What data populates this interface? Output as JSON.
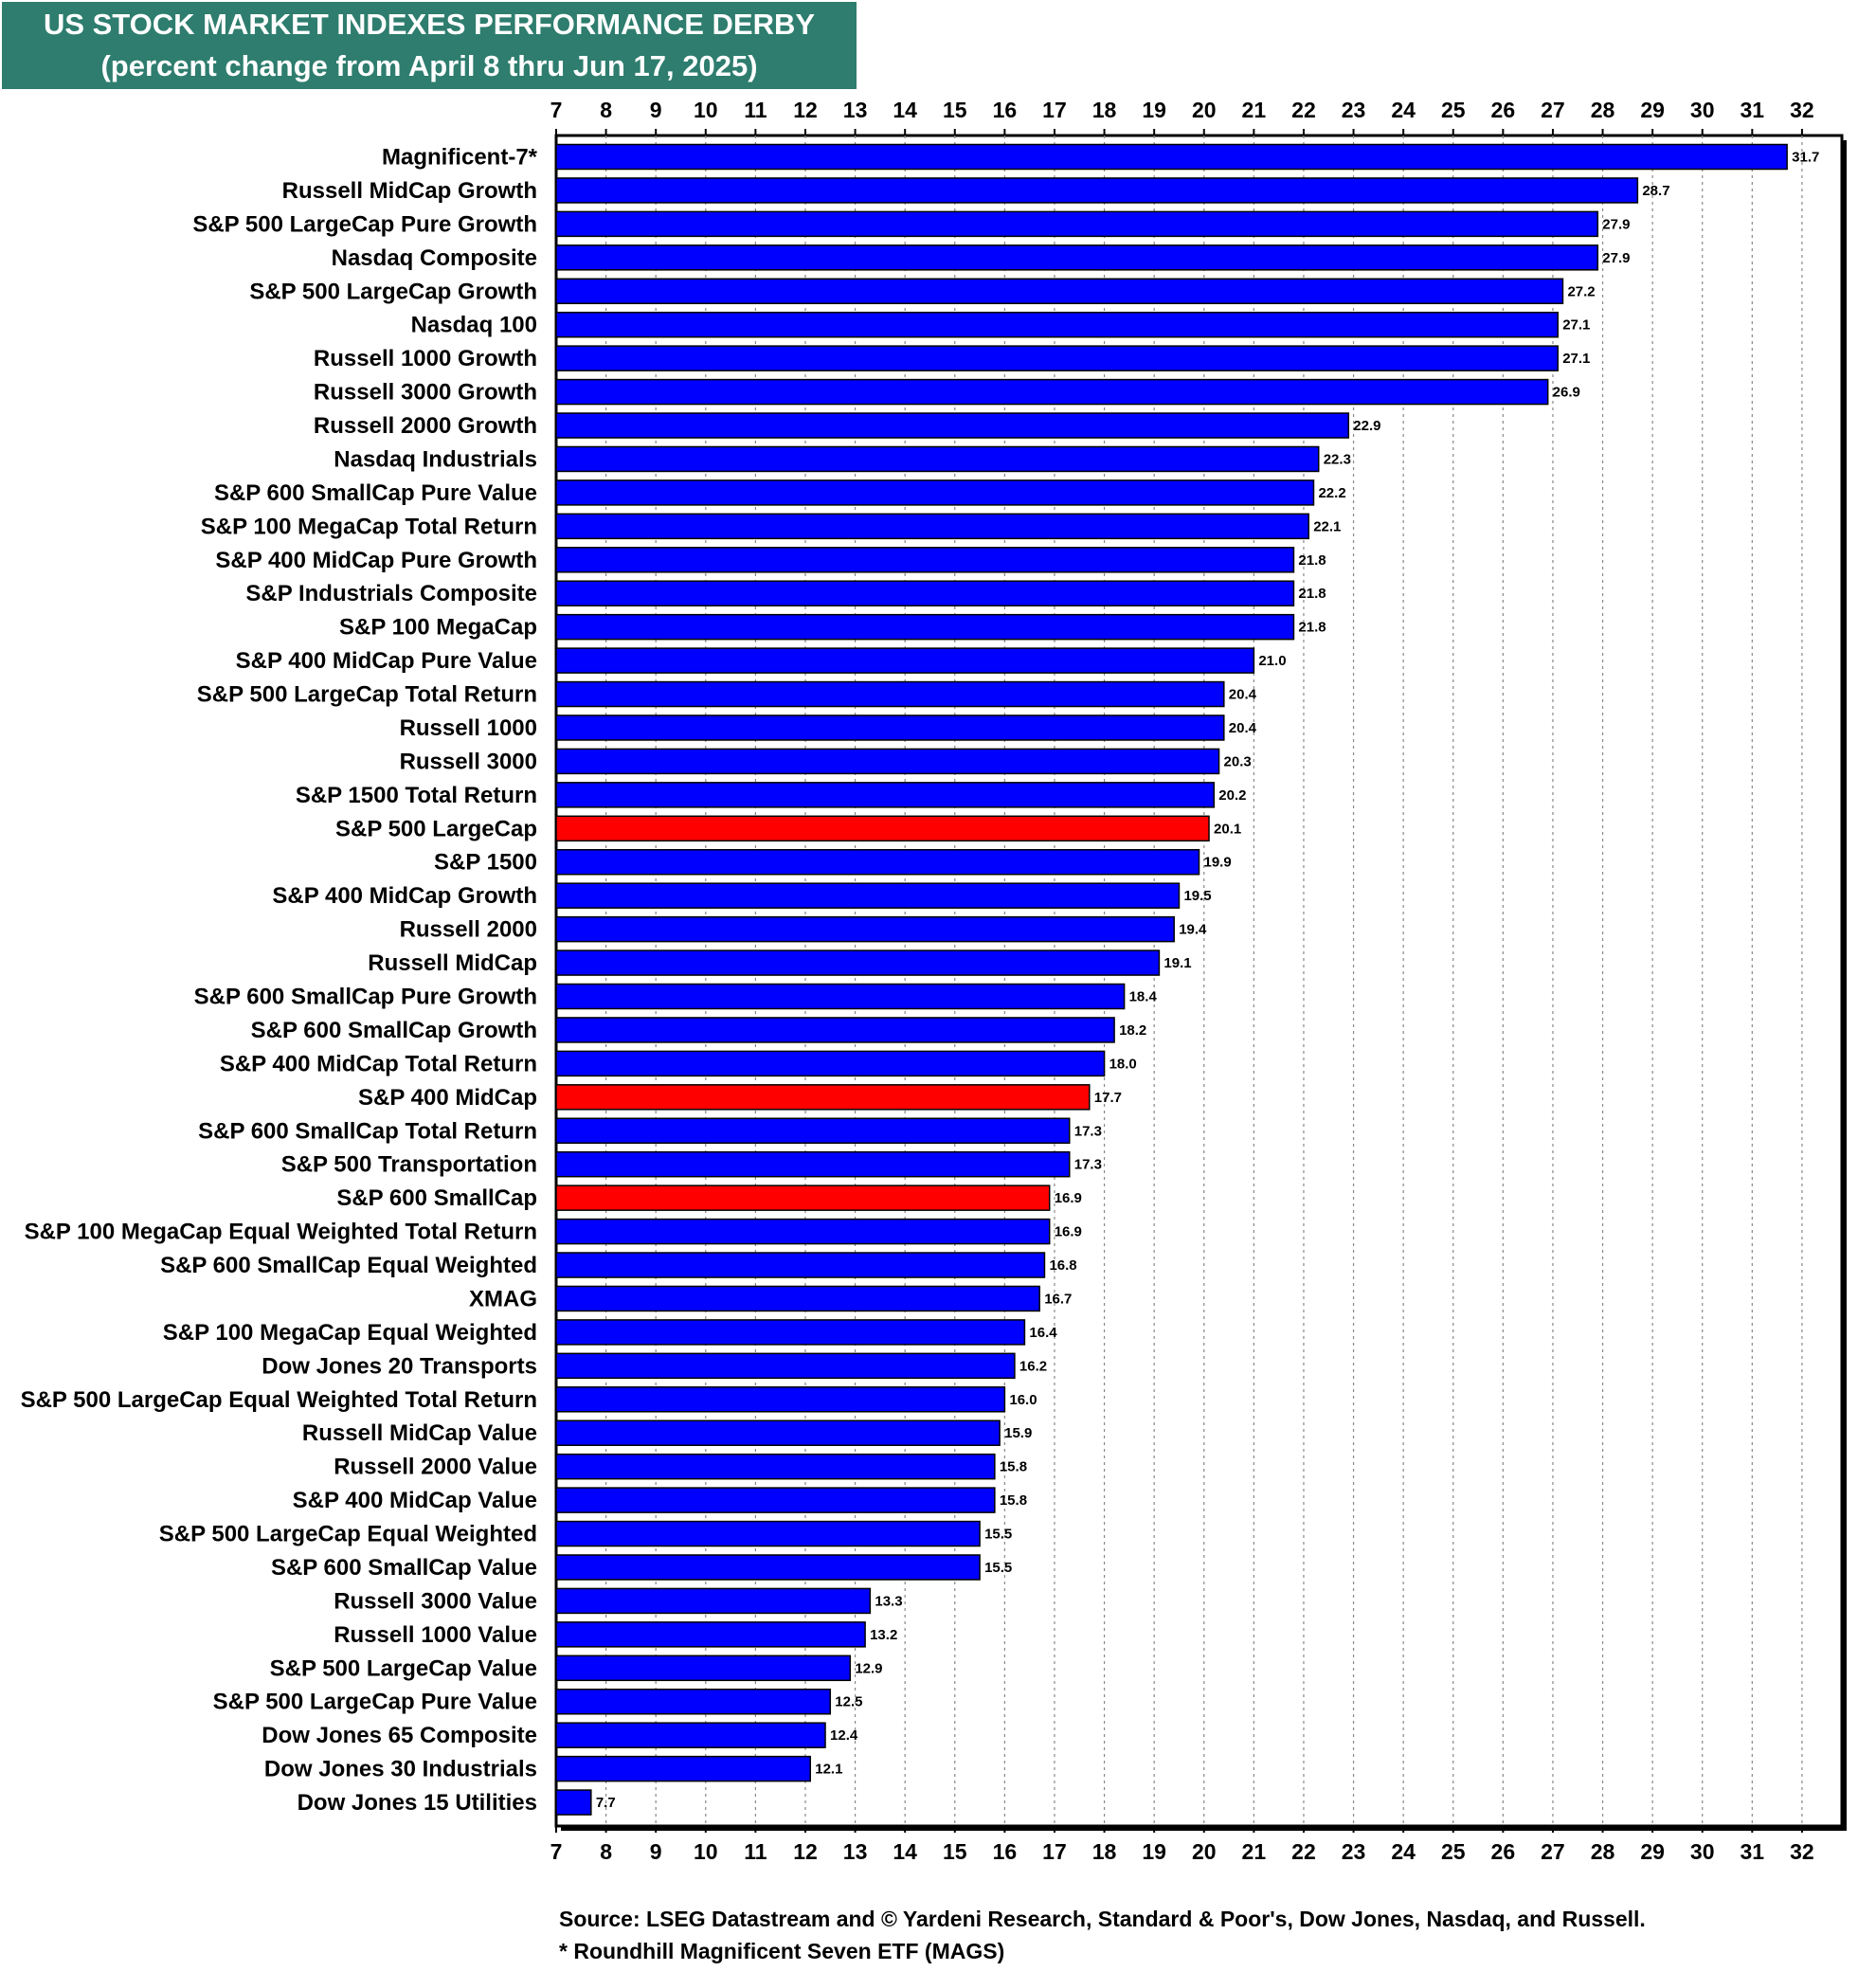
{
  "chart_data": {
    "type": "bar",
    "orientation": "horizontal",
    "title": "US STOCK MARKET INDEXES PERFORMANCE DERBY",
    "subtitle": "(percent change from April 8 thru Jun 17, 2025)",
    "xlim": [
      7,
      32.8
    ],
    "xticks": [
      7,
      8,
      9,
      10,
      11,
      12,
      13,
      14,
      15,
      16,
      17,
      18,
      19,
      20,
      21,
      22,
      23,
      24,
      25,
      26,
      27,
      28,
      29,
      30,
      31,
      32
    ],
    "grid": "vertical dotted",
    "axis_positions": "top and bottom",
    "colors": {
      "default": "#0000ff",
      "highlight": "#ff0000",
      "title_bg": "#2e7d6e"
    },
    "categories": [
      "Magnificent-7*",
      "Russell MidCap Growth",
      "S&P 500 LargeCap Pure Growth",
      "Nasdaq Composite",
      "S&P 500 LargeCap Growth",
      "Nasdaq 100",
      "Russell 1000 Growth",
      "Russell 3000 Growth",
      "Russell 2000 Growth",
      "Nasdaq Industrials",
      "S&P 600 SmallCap Pure Value",
      "S&P 100 MegaCap Total Return",
      "S&P 400 MidCap Pure Growth",
      "S&P Industrials Composite",
      "S&P 100 MegaCap",
      "S&P 400 MidCap Pure Value",
      "S&P 500 LargeCap Total Return",
      "Russell 1000",
      "Russell 3000",
      "S&P 1500 Total Return",
      "S&P 500 LargeCap",
      "S&P 1500",
      "S&P 400 MidCap Growth",
      "Russell 2000",
      "Russell MidCap",
      "S&P 600 SmallCap Pure Growth",
      "S&P 600 SmallCap Growth",
      "S&P 400 MidCap Total Return",
      "S&P 400 MidCap",
      "S&P 600 SmallCap Total Return",
      "S&P 500 Transportation",
      "S&P 600 SmallCap",
      "S&P 100 MegaCap Equal Weighted Total Return",
      "S&P 600 SmallCap Equal Weighted",
      "XMAG",
      "S&P 100 MegaCap Equal Weighted",
      "Dow Jones 20 Transports",
      "S&P 500 LargeCap Equal Weighted Total Return",
      "Russell MidCap Value",
      "Russell 2000 Value",
      "S&P 400 MidCap Value",
      "S&P 500 LargeCap Equal Weighted",
      "S&P 600 SmallCap Value",
      "Russell 3000 Value",
      "Russell 1000 Value",
      "S&P 500 LargeCap Value",
      "S&P 500 LargeCap Pure Value",
      "Dow Jones 65 Composite",
      "Dow Jones 30 Industrials",
      "Dow Jones 15 Utilities"
    ],
    "values": [
      31.7,
      28.7,
      27.9,
      27.9,
      27.2,
      27.1,
      27.1,
      26.9,
      22.9,
      22.3,
      22.2,
      22.1,
      21.8,
      21.8,
      21.8,
      21.0,
      20.4,
      20.4,
      20.3,
      20.2,
      20.1,
      19.9,
      19.5,
      19.4,
      19.1,
      18.4,
      18.2,
      18.0,
      17.7,
      17.3,
      17.3,
      16.9,
      16.9,
      16.8,
      16.7,
      16.4,
      16.2,
      16.0,
      15.9,
      15.8,
      15.8,
      15.5,
      15.5,
      13.3,
      13.2,
      12.9,
      12.5,
      12.4,
      12.1,
      7.7
    ],
    "value_labels": [
      "31.7",
      "28.7",
      "27.9",
      "27.9",
      "27.2",
      "27.1",
      "27.1",
      "26.9",
      "22.9",
      "22.3",
      "22.2",
      "22.1",
      "21.8",
      "21.8",
      "21.8",
      "21.0",
      "20.4",
      "20.4",
      "20.3",
      "20.2",
      "20.1",
      "19.9",
      "19.5",
      "19.4",
      "19.1",
      "18.4",
      "18.2",
      "18.0",
      "17.7",
      "17.3",
      "17.3",
      "16.9",
      "16.9",
      "16.8",
      "16.7",
      "16.4",
      "16.2",
      "16.0",
      "15.9",
      "15.8",
      "15.8",
      "15.5",
      "15.5",
      "13.3",
      "13.2",
      "12.9",
      "12.5",
      "12.4",
      "12.1",
      "7.7"
    ],
    "highlighted": [
      "S&P 500 LargeCap",
      "S&P 400 MidCap",
      "S&P 600 SmallCap"
    ]
  },
  "footer": {
    "source": "Source: LSEG Datastream and © Yardeni Research, Standard & Poor's, Dow Jones, Nasdaq, and Russell.",
    "note": "* Roundhill Magnificent Seven ETF (MAGS)"
  }
}
